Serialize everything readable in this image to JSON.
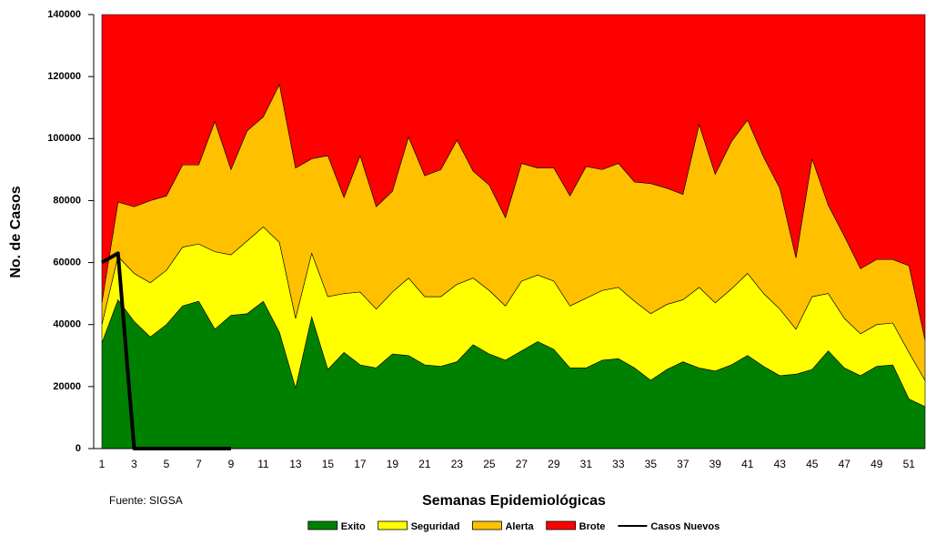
{
  "chart_data": {
    "type": "area",
    "stacked": true,
    "x_label": "Semanas Epidemiológicas",
    "y_label": "No. de Casos",
    "annotation": "Fuente: SIGSA",
    "categories": [
      1,
      null,
      3,
      null,
      5,
      null,
      7,
      null,
      9,
      null,
      11,
      null,
      13,
      null,
      15,
      null,
      17,
      null,
      19,
      null,
      21,
      null,
      23,
      null,
      25,
      null,
      27,
      null,
      29,
      null,
      31,
      null,
      33,
      null,
      35,
      null,
      37,
      null,
      39,
      null,
      41,
      null,
      43,
      null,
      45,
      null,
      47,
      null,
      49,
      null,
      51,
      null
    ],
    "ylim": [
      0,
      140000
    ],
    "yticks": [
      0,
      20000,
      40000,
      60000,
      80000,
      100000,
      120000,
      140000
    ],
    "legend": "bottom",
    "series": [
      {
        "name": "Exito",
        "color": "#008000",
        "values": [
          34000,
          48000,
          41000,
          36000,
          40000,
          46000,
          47500,
          38500,
          43000,
          43500,
          47500,
          37500,
          19500,
          42500,
          25500,
          31000,
          27000,
          26000,
          30500,
          30000,
          27000,
          26500,
          28000,
          33500,
          30500,
          28500,
          31500,
          34500,
          32000,
          26000,
          26000,
          28500,
          29000,
          26000,
          22000,
          25500,
          28000,
          26000,
          25000,
          27000,
          30000,
          26500,
          23500,
          24000,
          25500,
          31500,
          26000,
          23500,
          26500,
          27000,
          16000,
          13500
        ]
      },
      {
        "name": "Seguridad",
        "color": "#ffff00",
        "values": [
          6000,
          14000,
          15500,
          17500,
          17500,
          19000,
          18500,
          25000,
          19500,
          23500,
          24000,
          29000,
          22500,
          20500,
          23500,
          19000,
          23500,
          19000,
          20000,
          25000,
          22000,
          22500,
          25000,
          21500,
          20500,
          17500,
          22500,
          21500,
          22000,
          20000,
          22500,
          22500,
          23000,
          21500,
          21500,
          21000,
          20000,
          26000,
          22000,
          24500,
          26500,
          23500,
          21500,
          14500,
          23500,
          18500,
          16000,
          13500,
          13500,
          13500,
          15000,
          8500
        ]
      },
      {
        "name": "Alerta",
        "color": "#ffc000",
        "values": [
          7000,
          17500,
          21500,
          26500,
          24000,
          26500,
          25500,
          42000,
          27500,
          35500,
          35500,
          51000,
          48500,
          30500,
          45500,
          31000,
          44000,
          33000,
          32500,
          45500,
          39000,
          41000,
          46500,
          34500,
          34000,
          28500,
          38000,
          34500,
          36500,
          35500,
          42500,
          39000,
          40000,
          38500,
          42000,
          37500,
          34000,
          52500,
          41500,
          47500,
          49500,
          44000,
          39000,
          23000,
          44500,
          28500,
          26500,
          21000,
          21000,
          20500,
          28000,
          13000
        ]
      },
      {
        "name": "Brote",
        "color": "#ff0000",
        "values": [
          93000,
          60500,
          62000,
          60000,
          58500,
          48500,
          48500,
          34500,
          50000,
          37500,
          33000,
          22500,
          49500,
          46500,
          45500,
          59000,
          45500,
          62000,
          57000,
          39500,
          52000,
          50000,
          40500,
          50500,
          55000,
          65500,
          48000,
          49500,
          49500,
          58500,
          49000,
          50000,
          48000,
          54000,
          54500,
          56000,
          58000,
          35500,
          51500,
          41000,
          34000,
          46000,
          56000,
          78500,
          46500,
          61500,
          71500,
          82000,
          79000,
          79000,
          81000,
          105000
        ]
      },
      {
        "name": "Casos Nuevos",
        "color": "#000000",
        "type": "line",
        "values": [
          60000,
          63000,
          0,
          0,
          0,
          0,
          0,
          0,
          0,
          null,
          null,
          null,
          null,
          null,
          null,
          null,
          null,
          null,
          null,
          null,
          null,
          null,
          null,
          null,
          null,
          null,
          null,
          null,
          null,
          null,
          null,
          null,
          null,
          null,
          null,
          null,
          null,
          null,
          null,
          null,
          null,
          null,
          null,
          null,
          null,
          null,
          null,
          null,
          null,
          null,
          null,
          null
        ]
      }
    ]
  }
}
